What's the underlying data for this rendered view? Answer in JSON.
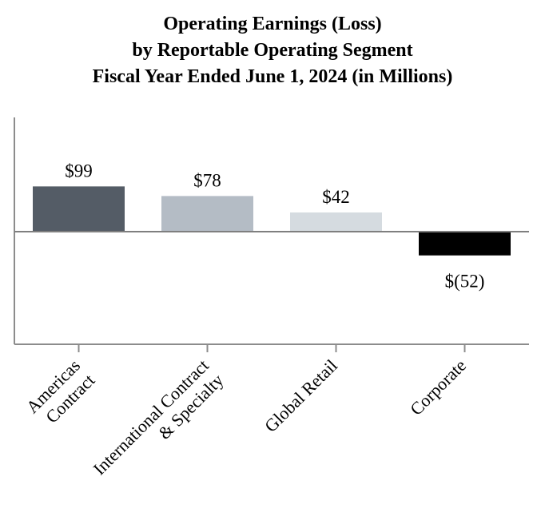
{
  "chart_data": {
    "type": "bar",
    "title": [
      "Operating Earnings (Loss)",
      "by Reportable Operating Segment",
      "Fiscal Year Ended June 1, 2024 (in Millions)"
    ],
    "categories": [
      [
        "Americas",
        "Contract"
      ],
      [
        "International Contract",
        "& Specialty"
      ],
      [
        "Global Retail"
      ],
      [
        "Corporate"
      ]
    ],
    "values": [
      99,
      78,
      42,
      -52
    ],
    "value_labels": [
      "$99",
      "$78",
      "$42",
      "$(52)"
    ],
    "colors": [
      "#545c66",
      "#b4bcc5",
      "#d5dbe0",
      "#000000"
    ],
    "ylim": [
      -250,
      250
    ],
    "xlabel": "",
    "ylabel": ""
  }
}
